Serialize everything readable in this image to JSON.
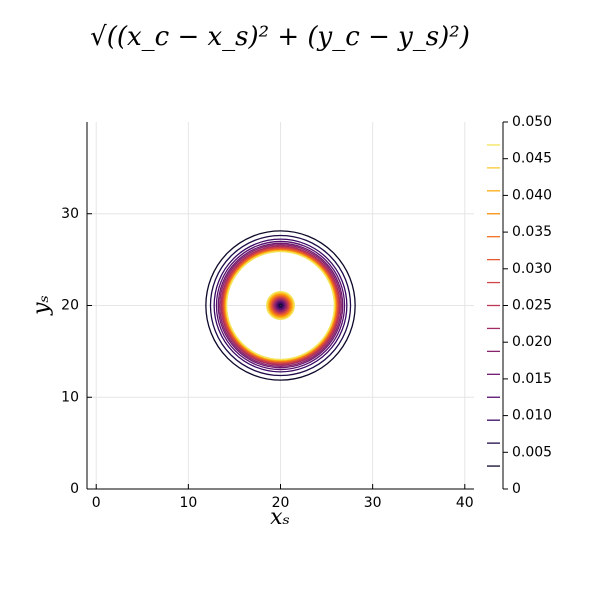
{
  "chart_data": {
    "type": "contour",
    "title": "√((x_c − x_s)² + (y_c − y_s)²)",
    "xlabel": "xₛ",
    "ylabel": "yₛ",
    "xlim": [
      -1,
      41
    ],
    "ylim": [
      0,
      40
    ],
    "xticks": [
      0,
      10,
      20,
      30,
      40
    ],
    "yticks": [
      0,
      10,
      20,
      30
    ],
    "grid": true,
    "center": [
      20,
      20
    ],
    "levels": [
      0.003125,
      0.00625,
      0.009375,
      0.0125,
      0.015625,
      0.01875,
      0.021875,
      0.025,
      0.028125,
      0.03125,
      0.034375,
      0.0375,
      0.040625,
      0.04375,
      0.046875
    ],
    "radii_outer": [
      8.1,
      7.6,
      7.2,
      6.95,
      6.75,
      6.6,
      6.45,
      6.35,
      6.25,
      6.15,
      6.08,
      6.0,
      5.95,
      5.9,
      5.85
    ],
    "radii_inner": [
      0.1,
      0.2,
      0.3,
      0.4,
      0.5,
      0.6,
      0.7,
      0.8,
      0.9,
      1.0,
      1.1,
      1.2,
      1.3,
      1.4,
      1.5
    ],
    "colors": [
      "#0d0829",
      "#1f0c48",
      "#3b0964",
      "#550f6d",
      "#6e186e",
      "#88226a",
      "#a12a64",
      "#bc3754",
      "#d04545",
      "#e45a31",
      "#f1711f",
      "#f98e09",
      "#fcac11",
      "#f9c932",
      "#f4e55b"
    ],
    "clim": [
      0,
      0.05
    ],
    "cticks": [
      0,
      0.005,
      {
        "value": 0.01,
        "label": "0.010"
      },
      0.015,
      {
        "value": 0.02,
        "label": "0.020"
      },
      0.025,
      {
        "value": 0.03,
        "label": "0.030"
      },
      0.035,
      {
        "value": 0.04,
        "label": "0.040"
      },
      0.045,
      {
        "value": 0.05,
        "label": "0.050"
      }
    ]
  }
}
